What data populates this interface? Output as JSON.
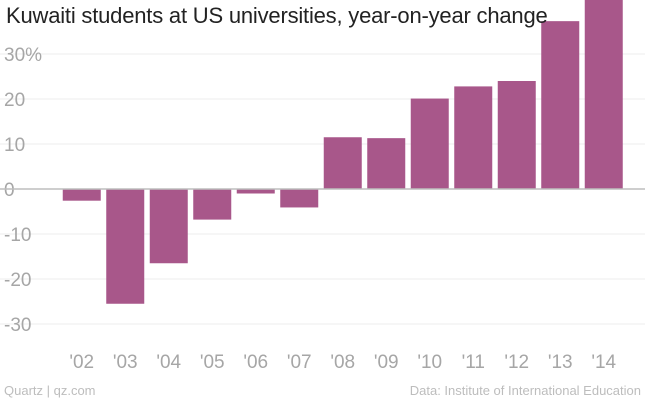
{
  "chart_data": {
    "type": "bar",
    "title": "Kuwaiti students at US universities, year-on-year change",
    "categories": [
      "'02",
      "'03",
      "'04",
      "'05",
      "'06",
      "'07",
      "'08",
      "'09",
      "'10",
      "'11",
      "'12",
      "'13",
      "'14"
    ],
    "values": [
      -2.6,
      -25.5,
      -16.5,
      -6.8,
      -1.0,
      -4.1,
      11.5,
      11.3,
      20.1,
      22.8,
      24.0,
      37.3,
      42.0
    ],
    "ylim": [
      -34,
      42
    ],
    "yticks": [
      30,
      20,
      10,
      0,
      -10,
      -20,
      -30
    ],
    "ytick_labels": [
      "30%",
      "20",
      "10",
      "0",
      "-10",
      "-20",
      "-30"
    ],
    "xlabel": "",
    "ylabel": "",
    "bar_color": "#a8578a",
    "zero_line_color": "#bdbdbd",
    "grid_color": "#ececec",
    "grid": true
  },
  "footer": {
    "source_left": "Quartz | qz.com",
    "source_right": "Data: Institute of International Education"
  }
}
